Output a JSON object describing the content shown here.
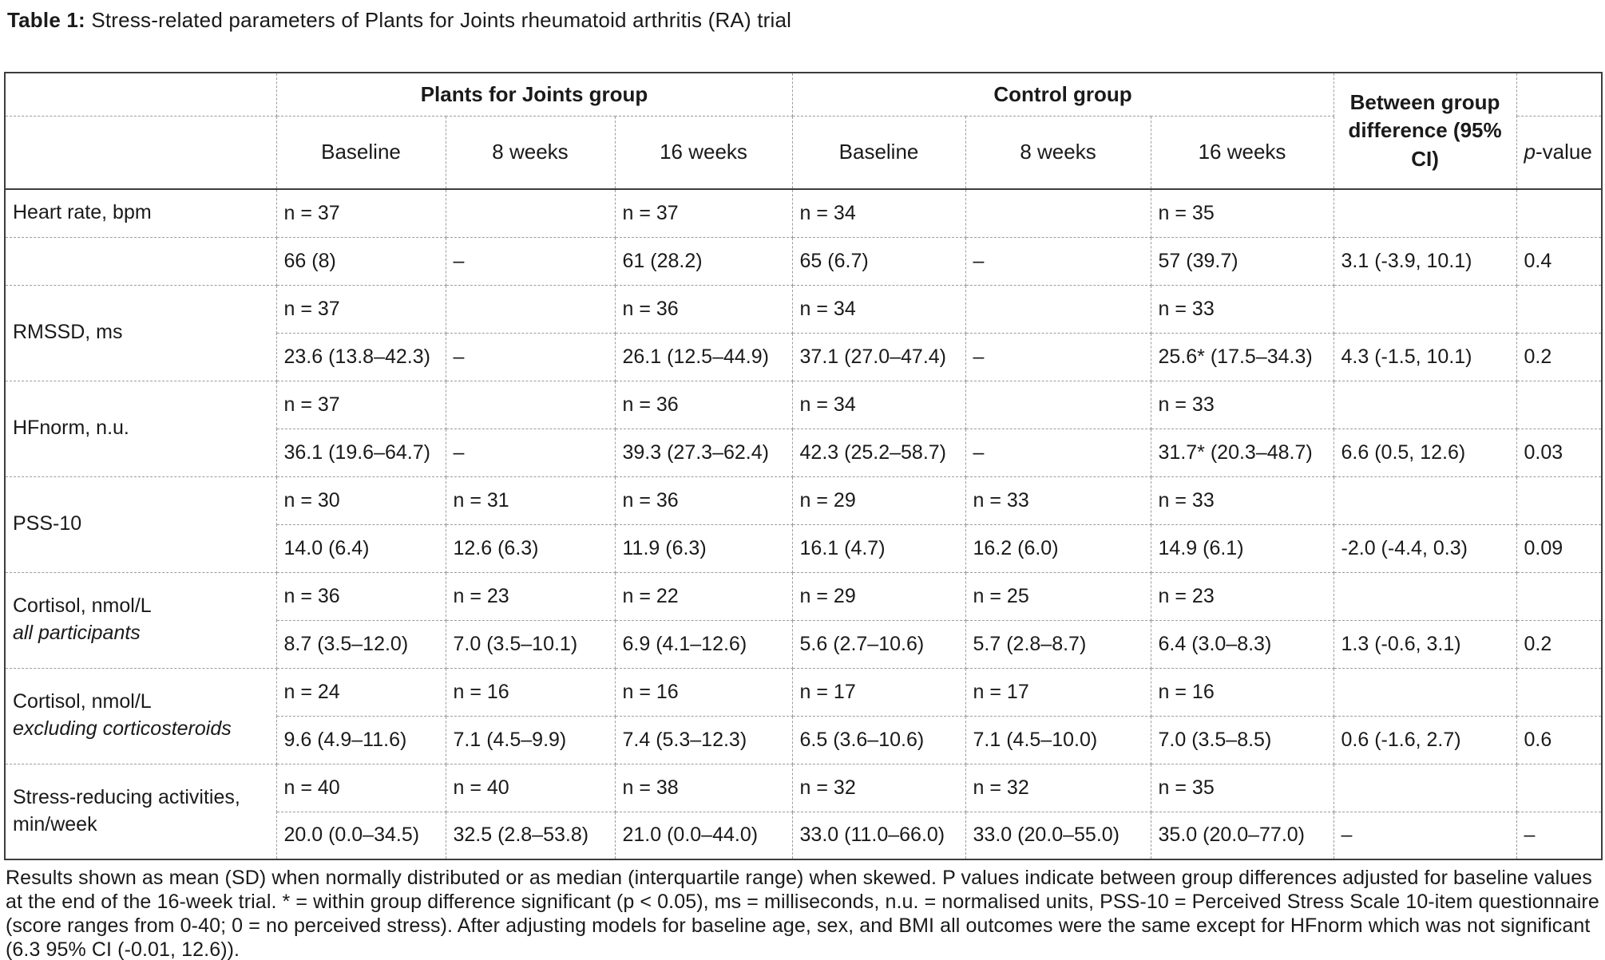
{
  "title": {
    "label": "Table 1:",
    "text": " Stress-related parameters of Plants for Joints rheumatoid arthritis (RA) trial"
  },
  "header": {
    "group1": "Plants for Joints group",
    "group2": "Control group",
    "between_group": "Between group difference (95% CI)",
    "p_value_italic": "p",
    "p_value_rest": "-value",
    "subcols": {
      "pj_baseline": "Baseline",
      "pj_8weeks": "8 weeks",
      "pj_16weeks": "16 weeks",
      "c_baseline": "Baseline",
      "c_8weeks": "8 weeks",
      "c_16weeks": "16 weeks"
    }
  },
  "rows": [
    {
      "label": "Heart rate, bpm",
      "sublabel": "",
      "sublabel_italic": false,
      "label_span": false,
      "n": [
        "n = 37",
        "",
        "n = 37",
        "n = 34",
        "",
        "n = 35",
        "",
        ""
      ],
      "values": [
        "66 (8)",
        "–",
        "61 (28.2)",
        "65 (6.7)",
        "–",
        "57 (39.7)",
        "3.1 (-3.9, 10.1)",
        "0.4"
      ]
    },
    {
      "label": "RMSSD, ms",
      "sublabel": "",
      "sublabel_italic": false,
      "label_span": true,
      "n": [
        "n = 37",
        "",
        "n = 36",
        "n = 34",
        "",
        "n = 33",
        "",
        ""
      ],
      "values": [
        "23.6 (13.8–42.3)",
        "–",
        "26.1 (12.5–44.9)",
        "37.1 (27.0–47.4)",
        "–",
        "25.6* (17.5–34.3)",
        "4.3 (-1.5, 10.1)",
        "0.2"
      ]
    },
    {
      "label": "HFnorm, n.u.",
      "sublabel": "",
      "sublabel_italic": false,
      "label_span": true,
      "n": [
        "n = 37",
        "",
        "n = 36",
        "n = 34",
        "",
        "n = 33",
        "",
        ""
      ],
      "values": [
        "36.1 (19.6–64.7)",
        "–",
        "39.3 (27.3–62.4)",
        "42.3 (25.2–58.7)",
        "–",
        "31.7* (20.3–48.7)",
        "6.6 (0.5, 12.6)",
        "0.03"
      ]
    },
    {
      "label": "PSS-10",
      "sublabel": "",
      "sublabel_italic": false,
      "label_span": true,
      "n": [
        "n = 30",
        "n = 31",
        "n = 36",
        "n = 29",
        "n = 33",
        "n = 33",
        "",
        ""
      ],
      "values": [
        "14.0 (6.4)",
        "12.6 (6.3)",
        "11.9 (6.3)",
        "16.1 (4.7)",
        "16.2 (6.0)",
        "14.9 (6.1)",
        "-2.0 (-4.4, 0.3)",
        "0.09"
      ]
    },
    {
      "label": "Cortisol, nmol/L",
      "sublabel": "all participants",
      "sublabel_italic": true,
      "label_span": true,
      "n": [
        "n = 36",
        "n = 23",
        "n = 22",
        "n = 29",
        "n = 25",
        "n = 23",
        "",
        ""
      ],
      "values": [
        "8.7 (3.5–12.0)",
        "7.0 (3.5–10.1)",
        "6.9 (4.1–12.6)",
        "5.6 (2.7–10.6)",
        "5.7 (2.8–8.7)",
        "6.4 (3.0–8.3)",
        "1.3 (-0.6, 3.1)",
        "0.2"
      ]
    },
    {
      "label": "Cortisol, nmol/L",
      "sublabel": "excluding corticosteroids",
      "sublabel_italic": true,
      "label_span": true,
      "n": [
        "n = 24",
        "n = 16",
        "n = 16",
        "n = 17",
        "n = 17",
        "n = 16",
        "",
        ""
      ],
      "values": [
        "9.6 (4.9–11.6)",
        "7.1 (4.5–9.9)",
        "7.4 (5.3–12.3)",
        "6.5 (3.6–10.6)",
        "7.1 (4.5–10.0)",
        "7.0 (3.5–8.5)",
        "0.6 (-1.6, 2.7)",
        "0.6"
      ]
    },
    {
      "label": "Stress-reducing activities,",
      "sublabel": "min/week",
      "sublabel_italic": false,
      "label_span": true,
      "n": [
        "n = 40",
        "n = 40",
        "n = 38",
        "n = 32",
        "n = 32",
        "n = 35",
        "",
        ""
      ],
      "values": [
        "20.0 (0.0–34.5)",
        "32.5 (2.8–53.8)",
        "21.0 (0.0–44.0)",
        "33.0 (11.0–66.0)",
        "33.0 (20.0–55.0)",
        "35.0 (20.0–77.0)",
        "–",
        "–"
      ]
    }
  ],
  "footnote": "Results shown as mean (SD) when normally distributed or as median (interquartile range) when skewed. P values indicate between group differences adjusted for baseline values at the end of the 16-week trial. * = within group difference significant (p < 0.05), ms = milliseconds, n.u. = normalised units, PSS-10 = Perceived Stress Scale 10-item questionnaire (score ranges from 0-40; 0 = no perceived stress). After adjusting models for baseline age, sex, and BMI all outcomes were the same except for HFnorm which was not significant (6.3 95% CI (-0.01, 12.6))."
}
